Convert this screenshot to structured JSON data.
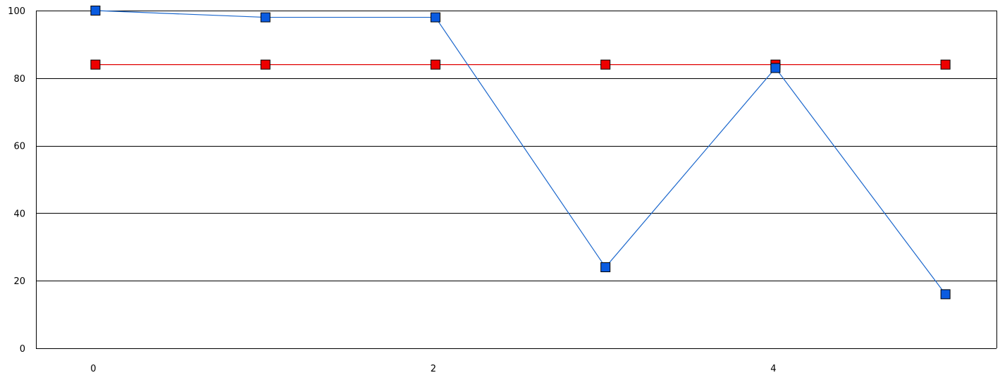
{
  "chart_data": {
    "type": "line",
    "title": "",
    "xlabel": "",
    "ylabel": "",
    "x": [
      0,
      1,
      2,
      3,
      4,
      5
    ],
    "xlim": [
      -0.35,
      5.3
    ],
    "ylim": [
      0,
      100
    ],
    "x_ticks": [
      {
        "value": 0,
        "label": "0"
      },
      {
        "value": 2,
        "label": "2"
      },
      {
        "value": 4,
        "label": "4"
      }
    ],
    "y_ticks": [
      {
        "value": 0,
        "label": "0"
      },
      {
        "value": 20,
        "label": "20"
      },
      {
        "value": 40,
        "label": "40"
      },
      {
        "value": 60,
        "label": "60"
      },
      {
        "value": 80,
        "label": "80"
      },
      {
        "value": 100,
        "label": "100"
      }
    ],
    "grid": "horizontal",
    "legend": "none",
    "series": [
      {
        "color": "#1a66cc",
        "marker_color": "#0a5be0",
        "marker": "square",
        "values": [
          100,
          98,
          98,
          24,
          83,
          16
        ]
      },
      {
        "color": "#e00000",
        "marker_color": "#ee0000",
        "marker": "square",
        "values": [
          84,
          84,
          84,
          84,
          84,
          84
        ]
      }
    ]
  }
}
